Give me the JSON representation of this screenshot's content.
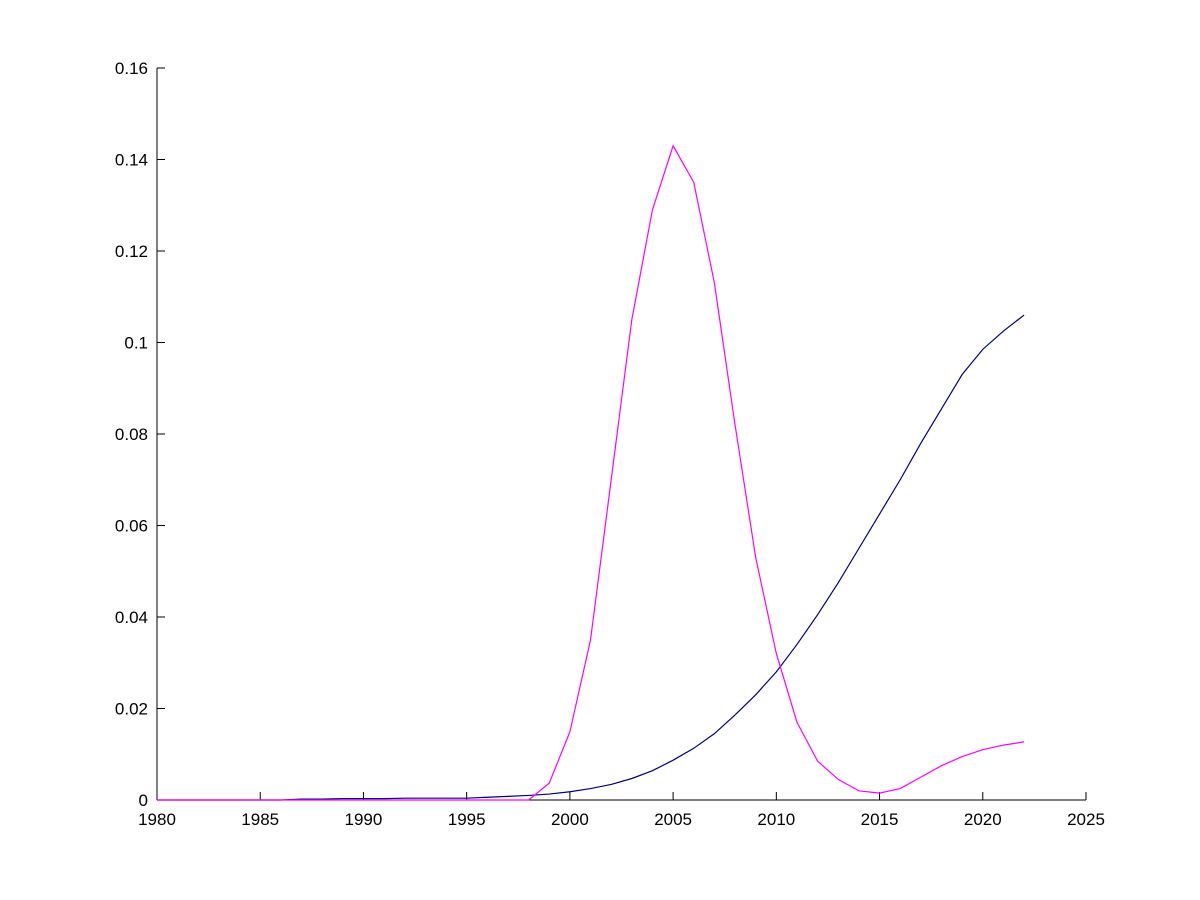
{
  "chart_data": {
    "type": "line",
    "x": [
      1980,
      1981,
      1982,
      1983,
      1984,
      1985,
      1986,
      1987,
      1988,
      1989,
      1990,
      1991,
      1992,
      1993,
      1994,
      1995,
      1996,
      1997,
      1998,
      1999,
      2000,
      2001,
      2002,
      2003,
      2004,
      2005,
      2006,
      2007,
      2008,
      2009,
      2010,
      2011,
      2012,
      2013,
      2014,
      2015,
      2016,
      2017,
      2018,
      2019,
      2020,
      2021,
      2022
    ],
    "series": [
      {
        "color": "#000080",
        "values": [
          0,
          0,
          0,
          0,
          0,
          0,
          0,
          0.0002,
          0.0002,
          0.0003,
          0.0003,
          0.0003,
          0.0004,
          0.0004,
          0.0004,
          0.0004,
          0.0006,
          0.0008,
          0.001,
          0.0013,
          0.0018,
          0.0025,
          0.0034,
          0.0047,
          0.0064,
          0.0087,
          0.0113,
          0.0145,
          0.0186,
          0.023,
          0.028,
          0.034,
          0.0405,
          0.0475,
          0.055,
          0.0625,
          0.07,
          0.078,
          0.0855,
          0.093,
          0.0985,
          0.1025,
          0.106
        ]
      },
      {
        "color": "#ff00ff",
        "values": [
          0,
          0,
          0,
          0,
          0,
          0,
          0,
          0,
          0,
          0,
          0,
          0,
          0,
          0,
          0,
          0,
          0,
          0,
          0,
          0.0037,
          0.0149,
          0.035,
          0.07,
          0.105,
          0.129,
          0.143,
          0.135,
          0.113,
          0.082,
          0.053,
          0.032,
          0.017,
          0.0085,
          0.0045,
          0.002,
          0.0015,
          0.0025,
          0.005,
          0.0075,
          0.0095,
          0.011,
          0.012,
          0.0127
        ]
      }
    ],
    "xlim": [
      1980,
      2025
    ],
    "xticks": [
      1980,
      1985,
      1990,
      1995,
      2000,
      2005,
      2010,
      2015,
      2020,
      2025
    ],
    "ylim": [
      0,
      0.16
    ],
    "yticks": [
      0,
      0.02,
      0.04,
      0.06,
      0.08,
      0.1,
      0.12,
      0.14,
      0.16
    ]
  }
}
